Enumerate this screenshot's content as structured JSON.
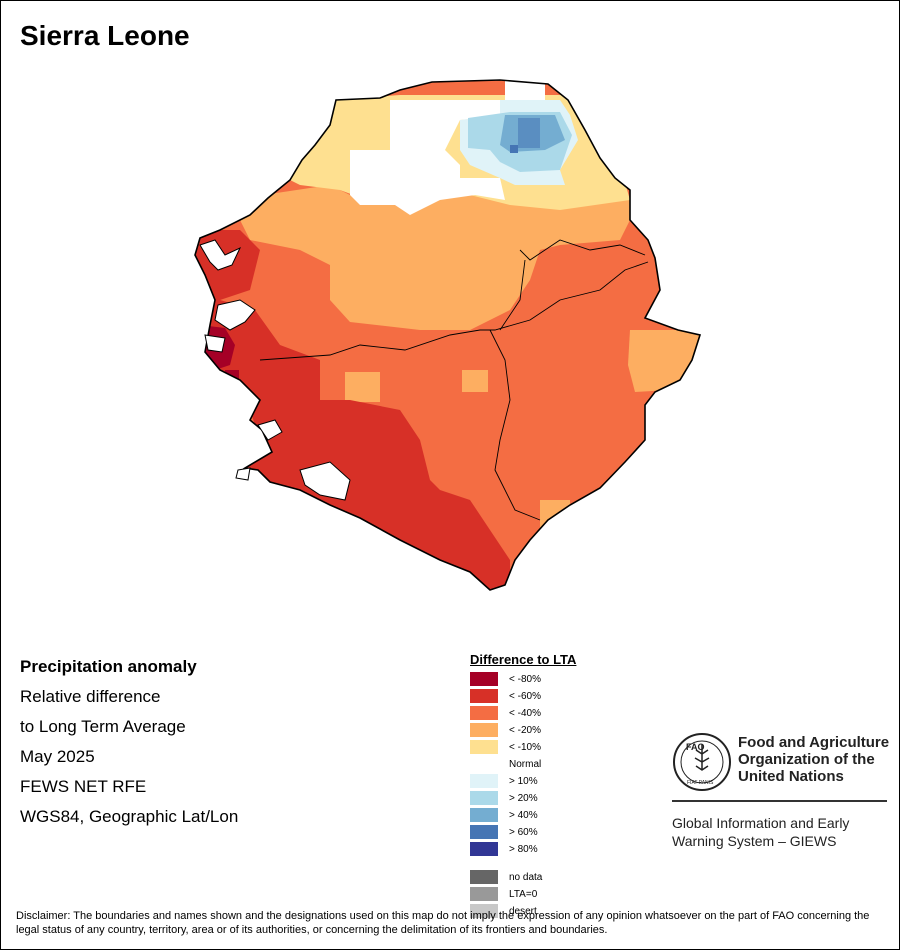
{
  "title": "Sierra Leone",
  "info": {
    "heading": "Precipitation anomaly",
    "line1": "Relative difference",
    "line2": "to Long Term Average",
    "date": "May 2025",
    "source": "FEWS NET RFE",
    "projection": "WGS84, Geographic Lat/Lon"
  },
  "legend": {
    "title": "Difference to LTA",
    "items": [
      {
        "label": "< -80%",
        "color": "#a50026"
      },
      {
        "label": "< -60%",
        "color": "#d73027"
      },
      {
        "label": "< -40%",
        "color": "#f46d43"
      },
      {
        "label": "< -20%",
        "color": "#fdae61"
      },
      {
        "label": "< -10%",
        "color": "#fee090"
      },
      {
        "label": "Normal",
        "color": "#ffffff"
      },
      {
        "label": "> 10%",
        "color": "#e0f3f8"
      },
      {
        "label": "> 20%",
        "color": "#abd9e9"
      },
      {
        "label": "> 40%",
        "color": "#74add1"
      },
      {
        "label": "> 60%",
        "color": "#4575b4"
      },
      {
        "label": "> 80%",
        "color": "#313695"
      }
    ],
    "extra": [
      {
        "label": "no data",
        "color": "#666666"
      },
      {
        "label": "LTA=0",
        "color": "#999999"
      },
      {
        "label": "desert",
        "color": "#c8c8c8"
      }
    ]
  },
  "org": {
    "name_line1": "Food and Agriculture",
    "name_line2": "Organization of the",
    "name_line3": "United Nations",
    "logo_text": "FAO",
    "logo_motto": "FIAT PANIS",
    "system_line1": "Global Information and Early",
    "system_line2": "Warning System – GIEWS"
  },
  "disclaimer": "Disclaimer: The boundaries and names shown and the designations used on this map do not imply the expression of any opinion whatsoever on the part of FAO concerning the legal status of any country, territory, area or of its authorities, or concerning the delimitation of its frontiers and boundaries."
}
